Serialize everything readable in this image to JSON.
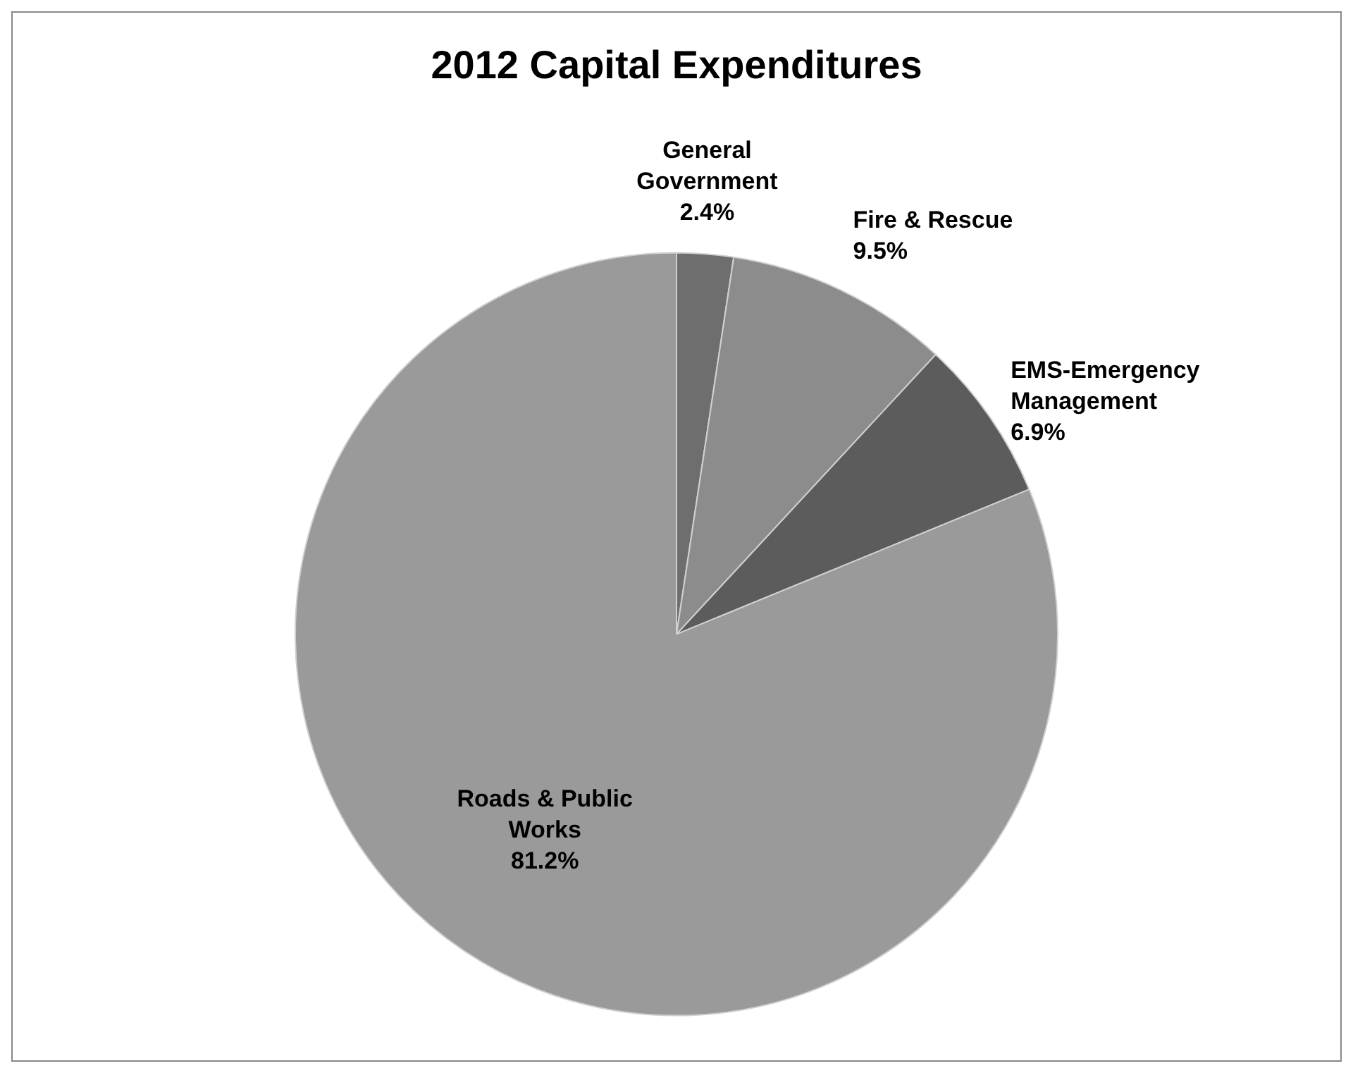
{
  "chart_data": {
    "type": "pie",
    "title": "2012 Capital Expenditures",
    "categories": [
      "General Government",
      "Fire & Rescue",
      "EMS-Emergency Management",
      "Roads & Public Works"
    ],
    "values": [
      2.4,
      9.5,
      6.9,
      81.2
    ],
    "value_labels": [
      "2.4%",
      "9.5%",
      "6.9%",
      "81.2%"
    ],
    "colors": [
      "#6e6e6e",
      "#8c8c8c",
      "#5c5c5c",
      "#9a9a9a"
    ],
    "legend": false
  }
}
